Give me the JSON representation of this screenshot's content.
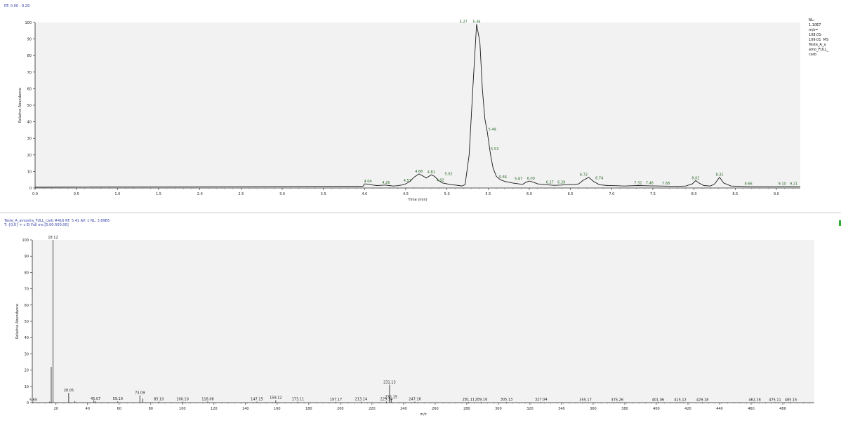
{
  "header_top": "RT: 0.00 - 9.29",
  "side_info": {
    "nl": "NL:",
    "nl_value": "1.10E7",
    "mz": "m/z=",
    "mz_range_1": "108.01-",
    "mz_range_2": "109.01  MS",
    "file_1": "Teste_A_a",
    "file_2": "amo_FULL_",
    "file_3": "carb"
  },
  "header_bottom_1": "Teste_A_amostra_FULL_carb #416  RT: 5.41  AV: 1  NL: 3.89E6",
  "header_bottom_2": "T: {0;0}  + c EI Full ms [5.00-500.00]",
  "colors": {
    "trace": "#1a1a1a",
    "label": "#2a6a2a",
    "plot_bg": "#f2f2f2",
    "header": "#3340a8"
  },
  "chart_data": [
    {
      "type": "line",
      "title": "",
      "xlabel": "Time (min)",
      "ylabel": "Relative Abundance",
      "xlim": [
        0,
        9.29
      ],
      "ylim": [
        0,
        100
      ],
      "x_ticks": [
        "0.0",
        "0.5",
        "1.0",
        "1.5",
        "2.0",
        "2.5",
        "3.0",
        "3.5",
        "4.0",
        "4.5",
        "5.0",
        "5.5",
        "6.0",
        "6.5",
        "7.0",
        "7.5",
        "8.0",
        "8.5",
        "9.0"
      ],
      "y_ticks": [
        "0",
        "10",
        "20",
        "30",
        "40",
        "50",
        "60",
        "70",
        "80",
        "90",
        "100"
      ],
      "series": [
        {
          "x": [
            0.0,
            3.98,
            4.0,
            4.05,
            4.1,
            4.15,
            4.2,
            4.25,
            4.3,
            4.35,
            4.4,
            4.45,
            4.5,
            4.55,
            4.6,
            4.66,
            4.7,
            4.75,
            4.81,
            4.85,
            4.9,
            4.95,
            5.0,
            5.05,
            5.1,
            5.15,
            5.18,
            5.22,
            5.27,
            5.32,
            5.36,
            5.4,
            5.43,
            5.46,
            5.49,
            5.53,
            5.56,
            5.6,
            5.65,
            5.7,
            5.75,
            5.8,
            5.87,
            5.92,
            5.96,
            6.0,
            6.05,
            6.1,
            6.2,
            6.3,
            6.39,
            6.45,
            6.5,
            6.55,
            6.6,
            6.65,
            6.72,
            6.78,
            6.85,
            6.95,
            7.05,
            7.15,
            7.32,
            7.46,
            7.6,
            7.7,
            7.8,
            7.9,
            7.98,
            8.02,
            8.06,
            8.12,
            8.2,
            8.25,
            8.31,
            8.36,
            8.45,
            8.66,
            8.8,
            9.0,
            9.1,
            9.21,
            9.29
          ],
          "y": [
            0.5,
            1.0,
            2.5,
            2.3,
            1.8,
            1.5,
            1.6,
            1.8,
            1.5,
            1.2,
            1.4,
            1.8,
            2.5,
            4.0,
            6.5,
            8.5,
            7.5,
            6.0,
            8.0,
            7.0,
            4.5,
            3.0,
            2.5,
            2.0,
            1.8,
            1.5,
            1.2,
            2.0,
            20,
            65,
            99,
            88,
            60,
            42,
            34,
            20,
            12,
            7,
            5,
            4,
            3.5,
            3,
            2.5,
            2.2,
            3.5,
            4.2,
            3.5,
            2.5,
            2.0,
            1.6,
            1.8,
            2.0,
            2.2,
            2.0,
            2.5,
            4.5,
            6.5,
            4.0,
            2.0,
            1.5,
            1.4,
            1.2,
            1.5,
            1.3,
            1.2,
            1.1,
            1.0,
            1.2,
            2.5,
            4.5,
            3.0,
            1.5,
            1.2,
            2.5,
            6.5,
            3.0,
            1.2,
            0.9,
            0.8,
            0.8,
            0.9,
            0.9,
            0.8
          ]
        }
      ],
      "peak_labels": [
        {
          "text": "4.04",
          "x": 4.04,
          "y": 2.5
        },
        {
          "text": "4.26",
          "x": 4.26,
          "y": 1.8
        },
        {
          "text": "4.52",
          "x": 4.52,
          "y": 3.0
        },
        {
          "text": "4.66",
          "x": 4.66,
          "y": 8.5
        },
        {
          "text": "4.81",
          "x": 4.81,
          "y": 8.0
        },
        {
          "text": "4.92",
          "x": 4.92,
          "y": 3.2
        },
        {
          "text": "5.02",
          "x": 5.02,
          "y": 7.0
        },
        {
          "text": "5.27",
          "x": 5.2,
          "y": 99
        },
        {
          "text": "5.36",
          "x": 5.36,
          "y": 99
        },
        {
          "text": "5.49",
          "x": 5.55,
          "y": 34
        },
        {
          "text": "5.53",
          "x": 5.58,
          "y": 22
        },
        {
          "text": "5.66",
          "x": 5.68,
          "y": 5
        },
        {
          "text": "5.87",
          "x": 5.87,
          "y": 4
        },
        {
          "text": "6.00",
          "x": 6.02,
          "y": 4.2
        },
        {
          "text": "6.27",
          "x": 6.25,
          "y": 2.0
        },
        {
          "text": "6.39",
          "x": 6.39,
          "y": 2.0
        },
        {
          "text": "6.72",
          "x": 6.66,
          "y": 6.5
        },
        {
          "text": "6.74",
          "x": 6.85,
          "y": 4.5
        },
        {
          "text": "7.32",
          "x": 7.32,
          "y": 1.5
        },
        {
          "text": "7.46",
          "x": 7.46,
          "y": 1.5
        },
        {
          "text": "7.68",
          "x": 7.66,
          "y": 1.3
        },
        {
          "text": "8.02",
          "x": 8.02,
          "y": 4.5
        },
        {
          "text": "8.31",
          "x": 8.31,
          "y": 6.5
        },
        {
          "text": "8.66",
          "x": 8.66,
          "y": 1.0
        },
        {
          "text": "9.10",
          "x": 9.07,
          "y": 1.0
        },
        {
          "text": "9.21",
          "x": 9.21,
          "y": 1.0
        }
      ]
    },
    {
      "type": "bar",
      "title": "",
      "xlabel": "m/z",
      "ylabel": "Relative Abundance",
      "xlim": [
        5,
        500
      ],
      "ylim": [
        0,
        100
      ],
      "x_ticks": [
        "20",
        "40",
        "60",
        "80",
        "100",
        "120",
        "140",
        "160",
        "180",
        "200",
        "220",
        "240",
        "260",
        "280",
        "300",
        "320",
        "340",
        "360",
        "380",
        "400",
        "420",
        "440",
        "460",
        "480"
      ],
      "y_ticks": [
        "0",
        "10",
        "20",
        "30",
        "40",
        "50",
        "60",
        "70",
        "80",
        "90",
        "100"
      ],
      "peaks": [
        {
          "mz": 5.65,
          "rel": 0.3,
          "label": "5.65"
        },
        {
          "mz": 16.0,
          "rel": 0.6,
          "label": ""
        },
        {
          "mz": 17.0,
          "rel": 22,
          "label": ""
        },
        {
          "mz": 18.12,
          "rel": 100,
          "label": "18.12"
        },
        {
          "mz": 28.05,
          "rel": 6,
          "label": "28.05"
        },
        {
          "mz": 32.0,
          "rel": 1.0,
          "label": ""
        },
        {
          "mz": 44.0,
          "rel": 1.5,
          "label": ""
        },
        {
          "mz": 45.07,
          "rel": 0.8,
          "label": "45.07"
        },
        {
          "mz": 59.1,
          "rel": 0.8,
          "label": "59.10"
        },
        {
          "mz": 73.09,
          "rel": 4.5,
          "label": "73.09"
        },
        {
          "mz": 75.0,
          "rel": 2.5,
          "label": ""
        },
        {
          "mz": 85.1,
          "rel": 0.6,
          "label": "85.10"
        },
        {
          "mz": 100.1,
          "rel": 0.6,
          "label": "100.10"
        },
        {
          "mz": 116.06,
          "rel": 0.7,
          "label": "116.06"
        },
        {
          "mz": 147.15,
          "rel": 0.6,
          "label": "147.15"
        },
        {
          "mz": 159.12,
          "rel": 1.5,
          "label": "159.12"
        },
        {
          "mz": 173.11,
          "rel": 0.6,
          "label": "173.11"
        },
        {
          "mz": 197.17,
          "rel": 0.5,
          "label": "197.17"
        },
        {
          "mz": 213.14,
          "rel": 0.6,
          "label": "213.14"
        },
        {
          "mz": 229.14,
          "rel": 0.7,
          "label": "229.14"
        },
        {
          "mz": 231.13,
          "rel": 11,
          "label": "231.13"
        },
        {
          "mz": 232.15,
          "rel": 2.0,
          "label": "232.15"
        },
        {
          "mz": 247.16,
          "rel": 0.6,
          "label": "247.16"
        },
        {
          "mz": 281.11,
          "rel": 0.4,
          "label": "281.11"
        },
        {
          "mz": 289.16,
          "rel": 0.4,
          "label": "289.16"
        },
        {
          "mz": 305.13,
          "rel": 0.4,
          "label": "305.13"
        },
        {
          "mz": 327.04,
          "rel": 0.4,
          "label": "327.04"
        },
        {
          "mz": 355.17,
          "rel": 0.3,
          "label": "355.17"
        },
        {
          "mz": 375.26,
          "rel": 0.3,
          "label": "375.26"
        },
        {
          "mz": 401.06,
          "rel": 0.3,
          "label": "401.06"
        },
        {
          "mz": 415.12,
          "rel": 0.3,
          "label": "415.12"
        },
        {
          "mz": 429.18,
          "rel": 0.3,
          "label": "429.18"
        },
        {
          "mz": 462.28,
          "rel": 0.3,
          "label": "462.28"
        },
        {
          "mz": 475.11,
          "rel": 0.3,
          "label": "475.11"
        },
        {
          "mz": 485.15,
          "rel": 0.3,
          "label": "485.15"
        }
      ]
    }
  ]
}
